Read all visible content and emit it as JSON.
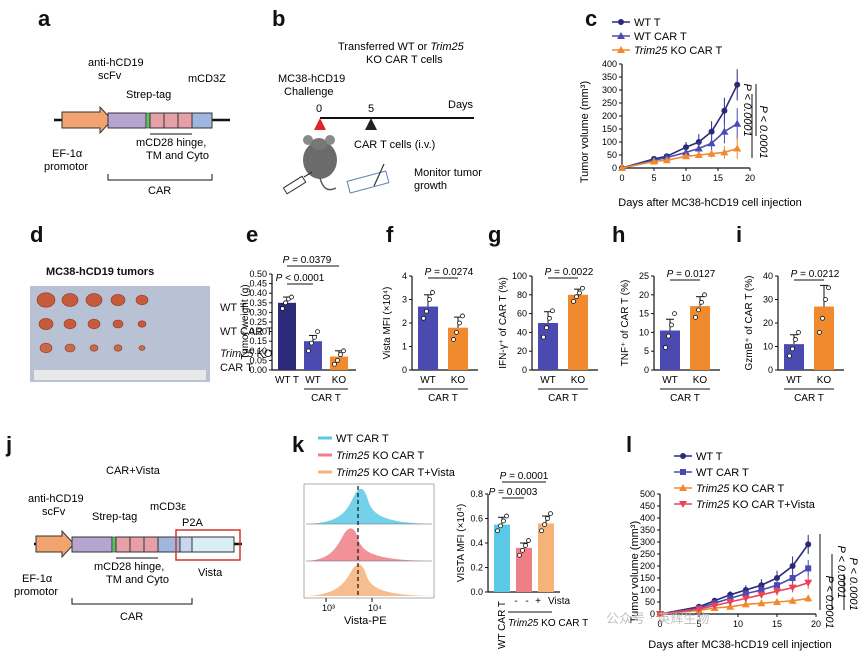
{
  "labels": [
    "a",
    "b",
    "c",
    "d",
    "e",
    "f",
    "g",
    "h",
    "i",
    "j",
    "k",
    "l"
  ],
  "colors": {
    "wt": "#2b2a7a",
    "wtcar": "#4a4ab0",
    "ko": "#f08a2e",
    "kov": "#e8435a",
    "cyan": "#5bc9e6",
    "pink": "#ee7f86",
    "peach": "#f5b37a",
    "red": "#d9322b"
  },
  "panel_a": {
    "anti": "anti-hCD19",
    "scfv": "scFv",
    "strep": "Strep-tag",
    "mcd3z": "mCD3Z",
    "hinge1": "mCD28 hinge,",
    "hinge2": "TM and Cyto",
    "ef1": "EF-1α",
    "promotor": "promotor",
    "car": "CAR"
  },
  "panel_b": {
    "title1": "Transferred WT or",
    "title1_italic": "Trim25",
    "title2": "KO CAR T cells",
    "challenge1": "MC38-hCD19",
    "challenge2": "Challenge",
    "d0": "0",
    "d5": "5",
    "days": "Days",
    "cart": "CAR T cells (i.v.)",
    "monitor1": "Monitor tumor",
    "monitor2": "growth"
  },
  "panel_c": {
    "legend": [
      {
        "name": "WT T",
        "italic": "",
        "rest": ""
      },
      {
        "name": "WT CAR T",
        "italic": "",
        "rest": ""
      },
      {
        "name": "",
        "italic": "Trim25",
        "rest": " KO CAR T"
      }
    ],
    "ylabel": "Tumor volume (mm³)",
    "xlabel": "Days after MC38-hCD19 cell injection",
    "p1": "P < 0.0001",
    "p2": "P < 0.0001"
  },
  "panel_d": {
    "title": "MC38-hCD19 tumors",
    "wt": "WT T",
    "wtcar": "WT CAR T",
    "ko_italic": "Trim25",
    "ko_rest": " KO",
    "ko2": "CAR T"
  },
  "panel_e": {
    "ylabel": "Tumor weight (g)",
    "p1": "P = 0.0379",
    "p2": "P < 0.0001",
    "x1": "WT T",
    "x2": "WT",
    "x3": "KO",
    "group": "CAR T"
  },
  "panel_f": {
    "ylabel": "Vista MFI (×10⁴)",
    "p": "P = 0.0274",
    "x1": "WT",
    "x2": "KO",
    "group": "CAR T"
  },
  "panel_g": {
    "ylabel": "IFN-γ⁺ of CAR T (%)",
    "p": "P = 0.0022",
    "x1": "WT",
    "x2": "KO",
    "group": "CAR T"
  },
  "panel_h": {
    "ylabel": "TNF⁺ of CAR T (%)",
    "p": "P = 0.0127",
    "x1": "WT",
    "x2": "KO",
    "group": "CAR T"
  },
  "panel_i": {
    "ylabel": "GzmB⁺ of CAR T (%)",
    "p": "P = 0.0212",
    "x1": "WT",
    "x2": "KO",
    "group": "CAR T"
  },
  "panel_j": {
    "title": "CAR+Vista",
    "anti": "anti-hCD19",
    "scfv": "scFv",
    "strep": "Strep-tag",
    "mcd3e": "mCD3ε",
    "p2a": "P2A",
    "hinge1": "mCD28 hinge,",
    "hinge2": "TM and Cyto",
    "vista": "Vista",
    "ef1": "EF-1α",
    "promotor": "promotor",
    "car": "CAR"
  },
  "panel_k": {
    "legend": [
      {
        "italic": "",
        "rest": "WT CAR T"
      },
      {
        "italic": "Trim25",
        "rest": " KO CAR T"
      },
      {
        "italic": "Trim25",
        "rest": " KO CAR T+Vista"
      }
    ],
    "xlabel": "Vista-PE",
    "ylabel": "VISTA MFI (×10⁴)",
    "p1": "P = 0.0001",
    "p2": "P = 0.0003",
    "wtcar": "WT CAR T",
    "minus1": "-",
    "minus2": "-",
    "plus": "+",
    "vista": "Vista",
    "ko_italic": "Trim25",
    "ko_rest": " KO CAR T"
  },
  "panel_l": {
    "legend": [
      {
        "italic": "",
        "rest": "WT T"
      },
      {
        "italic": "",
        "rest": "WT CAR T"
      },
      {
        "italic": "Trim25",
        "rest": " KO CAR T"
      },
      {
        "italic": "Trim25",
        "rest": " KO CAR T+Vista"
      }
    ],
    "ylabel": "Tumor volume (mm³)",
    "xlabel": "Days after MC38-hCD19 cell injection",
    "p1": "P < 0.0001",
    "p2": "P < 0.0001",
    "p3": "P < 0.0001"
  },
  "watermark": "公众号 · 英辉生物",
  "chart_data": [
    {
      "id": "c",
      "type": "line",
      "title": "",
      "xlabel": "Days after MC38-hCD19 cell injection",
      "ylabel": "Tumor volume (mm³)",
      "xlim": [
        0,
        20
      ],
      "ylim": [
        0,
        400
      ],
      "xticks": [
        0,
        5,
        10,
        15,
        20
      ],
      "yticks": [
        0,
        50,
        100,
        150,
        200,
        250,
        300,
        350,
        400
      ],
      "x": [
        0,
        5,
        7,
        10,
        12,
        14,
        16,
        18
      ],
      "series": [
        {
          "name": "WT T",
          "color": "#2b2a7a",
          "marker": "circle",
          "values": [
            0,
            35,
            45,
            80,
            100,
            140,
            220,
            320
          ],
          "errors": [
            0,
            8,
            10,
            20,
            30,
            40,
            50,
            60
          ]
        },
        {
          "name": "WT CAR T",
          "color": "#4a4ab0",
          "marker": "triangle",
          "values": [
            0,
            30,
            40,
            60,
            75,
            95,
            140,
            170
          ],
          "errors": [
            0,
            8,
            10,
            15,
            25,
            35,
            45,
            60
          ]
        },
        {
          "name": "Trim25 KO CAR T",
          "color": "#f08a2e",
          "marker": "triangle",
          "values": [
            0,
            25,
            30,
            45,
            50,
            55,
            60,
            75
          ],
          "errors": [
            0,
            5,
            8,
            10,
            12,
            15,
            25,
            40
          ]
        }
      ]
    },
    {
      "id": "e",
      "type": "bar",
      "ylabel": "Tumor weight (g)",
      "ylim": [
        0,
        0.5
      ],
      "yticks": [
        0,
        0.05,
        0.1,
        0.15,
        0.2,
        0.25,
        0.3,
        0.35,
        0.4,
        0.45,
        0.5
      ],
      "categories": [
        "WT T",
        "WT",
        "KO"
      ],
      "colors": [
        "#2b2a7a",
        "#4a4ab0",
        "#f08a2e"
      ],
      "values": [
        0.35,
        0.15,
        0.07
      ],
      "errors": [
        0.03,
        0.03,
        0.03
      ],
      "points": [
        [
          0.32,
          0.35,
          0.37,
          0.38
        ],
        [
          0.1,
          0.14,
          0.17,
          0.2
        ],
        [
          0.03,
          0.05,
          0.08,
          0.1
        ]
      ]
    },
    {
      "id": "f",
      "type": "bar",
      "ylabel": "Vista MFI (×10⁴)",
      "ylim": [
        0,
        4
      ],
      "yticks": [
        0,
        1,
        2,
        3,
        4
      ],
      "categories": [
        "WT",
        "KO"
      ],
      "colors": [
        "#4a4ab0",
        "#f08a2e"
      ],
      "values": [
        2.7,
        1.8
      ],
      "errors": [
        0.5,
        0.45
      ],
      "points": [
        [
          2.2,
          2.5,
          3.0,
          3.3
        ],
        [
          1.3,
          1.6,
          2.0,
          2.3
        ]
      ]
    },
    {
      "id": "g",
      "type": "bar",
      "ylabel": "IFN-γ⁺ of CAR T (%)",
      "ylim": [
        0,
        100
      ],
      "yticks": [
        0,
        20,
        40,
        60,
        80,
        100
      ],
      "categories": [
        "WT",
        "KO"
      ],
      "colors": [
        "#4a4ab0",
        "#f08a2e"
      ],
      "values": [
        50,
        80
      ],
      "errors": [
        12,
        6
      ],
      "points": [
        [
          35,
          45,
          55,
          63
        ],
        [
          73,
          78,
          82,
          87
        ]
      ]
    },
    {
      "id": "h",
      "type": "bar",
      "ylabel": "TNF⁺ of CAR T (%)",
      "ylim": [
        0,
        25
      ],
      "yticks": [
        0,
        5,
        10,
        15,
        20,
        25
      ],
      "categories": [
        "WT",
        "KO"
      ],
      "colors": [
        "#4a4ab0",
        "#f08a2e"
      ],
      "values": [
        10.5,
        17
      ],
      "errors": [
        3,
        2.5
      ],
      "points": [
        [
          6,
          9,
          12,
          15
        ],
        [
          14,
          16,
          18,
          20
        ]
      ]
    },
    {
      "id": "i",
      "type": "bar",
      "ylabel": "GzmB⁺ of CAR T (%)",
      "ylim": [
        0,
        40
      ],
      "yticks": [
        0,
        10,
        20,
        30,
        40
      ],
      "categories": [
        "WT",
        "KO"
      ],
      "colors": [
        "#4a4ab0",
        "#f08a2e"
      ],
      "values": [
        11,
        27
      ],
      "errors": [
        4,
        9
      ],
      "points": [
        [
          6,
          9,
          13,
          16
        ],
        [
          16,
          22,
          30,
          35
        ]
      ]
    },
    {
      "id": "k",
      "type": "bar",
      "ylabel": "VISTA MFI (×10⁴)",
      "ylim": [
        0,
        0.8
      ],
      "yticks": [
        0,
        0.2,
        0.4,
        0.6,
        0.8
      ],
      "categories": [
        "WT CAR T",
        "KO",
        "KO+Vista"
      ],
      "colors": [
        "#5bc9e6",
        "#ee7f86",
        "#f5b37a"
      ],
      "values": [
        0.55,
        0.36,
        0.56
      ],
      "errors": [
        0.06,
        0.04,
        0.06
      ],
      "points": [
        [
          0.5,
          0.54,
          0.58,
          0.62
        ],
        [
          0.3,
          0.34,
          0.38,
          0.42
        ],
        [
          0.5,
          0.55,
          0.6,
          0.64
        ]
      ]
    },
    {
      "id": "l",
      "type": "line",
      "title": "",
      "xlabel": "Days after MC38-hCD19 cell injection",
      "ylabel": "Tumor volume (mm³)",
      "xlim": [
        0,
        20
      ],
      "ylim": [
        0,
        500
      ],
      "xticks": [
        0,
        5,
        10,
        15,
        20
      ],
      "yticks": [
        0,
        50,
        100,
        150,
        200,
        250,
        300,
        350,
        400,
        450,
        500
      ],
      "x": [
        0,
        5,
        7,
        9,
        11,
        13,
        15,
        17,
        19
      ],
      "series": [
        {
          "name": "WT T",
          "color": "#2b2a7a",
          "marker": "circle",
          "values": [
            0,
            30,
            55,
            80,
            100,
            120,
            150,
            200,
            290
          ],
          "errors": [
            0,
            8,
            12,
            15,
            20,
            25,
            30,
            40,
            40
          ]
        },
        {
          "name": "WT CAR T",
          "color": "#4a4ab0",
          "marker": "square",
          "values": [
            0,
            25,
            45,
            65,
            85,
            100,
            120,
            150,
            190
          ],
          "errors": [
            0,
            6,
            10,
            12,
            15,
            20,
            25,
            30,
            35
          ]
        },
        {
          "name": "Trim25 KO CAR T",
          "color": "#f08a2e",
          "marker": "triangle",
          "values": [
            0,
            15,
            25,
            30,
            40,
            45,
            50,
            55,
            65
          ],
          "errors": [
            0,
            5,
            6,
            8,
            8,
            10,
            10,
            12,
            15
          ]
        },
        {
          "name": "Trim25 KO CAR T+Vista",
          "color": "#e8435a",
          "marker": "triangle-down",
          "values": [
            0,
            20,
            35,
            50,
            65,
            80,
            95,
            110,
            130
          ],
          "errors": [
            0,
            6,
            8,
            10,
            12,
            15,
            18,
            20,
            25
          ]
        }
      ]
    }
  ]
}
